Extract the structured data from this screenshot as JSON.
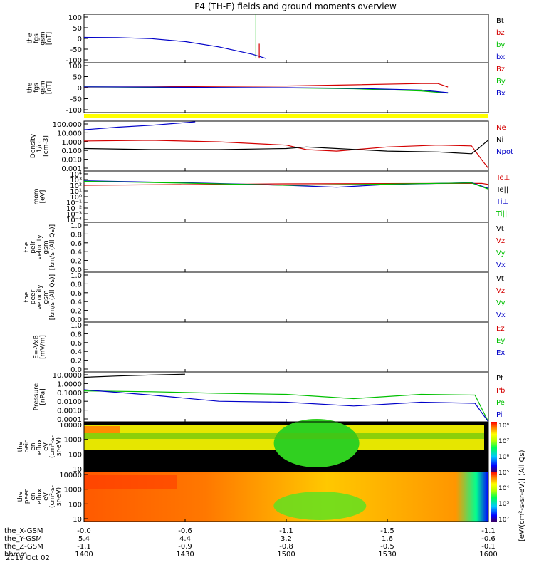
{
  "title": "P4 (TH-E) fields and ground moments overview",
  "date_label": "2019 Oct 02",
  "ephemeris": {
    "rows": [
      {
        "label": "the_X-GSM",
        "values": [
          "-0.0",
          "-0.6",
          "-1.1",
          "-1.5",
          "-1.1"
        ]
      },
      {
        "label": "the_Y-GSM",
        "values": [
          "5.4",
          "4.4",
          "3.2",
          "1.6",
          "-0.6"
        ]
      },
      {
        "label": "the_Z-GSM",
        "values": [
          "-1.1",
          "-0.9",
          "-0.8",
          "-0.5",
          "-0.1"
        ]
      },
      {
        "label": "hhmm",
        "values": [
          "1400",
          "1430",
          "1500",
          "1530",
          "1600"
        ]
      }
    ]
  },
  "colors": {
    "black": "#000000",
    "red": "#d40000",
    "green": "#00c000",
    "blue": "#0000c8",
    "yellow": "#ffff00"
  },
  "panels": [
    {
      "ylabel": [
        "the",
        "fgs",
        "gsm",
        "[nT]"
      ],
      "ticks": [
        "100",
        "50",
        "0",
        "-50",
        "-100"
      ],
      "legend": [
        {
          "text": "Bt",
          "color": "#000000"
        },
        {
          "text": "bz",
          "color": "#d40000"
        },
        {
          "text": "by",
          "color": "#00c000"
        },
        {
          "text": "bx",
          "color": "#0000c8"
        }
      ]
    },
    {
      "ylabel": [
        "the",
        "fgs",
        "gsm",
        "[nT]"
      ],
      "ticks": [
        "100",
        "50",
        "0",
        "-50",
        "-100"
      ],
      "legend": [
        {
          "text": "Bz",
          "color": "#d40000"
        },
        {
          "text": "By",
          "color": "#00c000"
        },
        {
          "text": "Bx",
          "color": "#0000c8"
        }
      ]
    },
    {
      "ylabel": [
        "Density",
        "1/cc",
        "[cm-3]"
      ],
      "ticks": [
        "100.000",
        "10.000",
        "1.000",
        "0.100",
        "0.010",
        "0.001"
      ],
      "legend": [
        {
          "text": "Ne",
          "color": "#d40000"
        },
        {
          "text": "Ni",
          "color": "#000000"
        },
        {
          "text": "Npot",
          "color": "#0000c8"
        }
      ]
    },
    {
      "ylabel": [
        "mom",
        "[eV]"
      ],
      "ticks": [
        "10⁴",
        "10³",
        "10²",
        "10¹",
        "10⁰",
        "10⁻¹",
        "10⁻²",
        "10⁻³",
        "10⁻⁴"
      ],
      "legend": [
        {
          "text": "Te⊥",
          "color": "#d40000"
        },
        {
          "text": "Te||",
          "color": "#000000"
        },
        {
          "text": "Ti⊥",
          "color": "#0000c8"
        },
        {
          "text": "Ti||",
          "color": "#00c000"
        }
      ]
    },
    {
      "ylabel": [
        "the",
        "peir",
        "velocity",
        "gsm",
        "[km/s (All Qs)]"
      ],
      "ticks": [
        "1.0",
        "0.8",
        "0.6",
        "0.4",
        "0.2",
        "0.0"
      ],
      "legend": [
        {
          "text": "Vt",
          "color": "#000000"
        },
        {
          "text": "Vz",
          "color": "#d40000"
        },
        {
          "text": "Vy",
          "color": "#00c000"
        },
        {
          "text": "Vx",
          "color": "#0000c8"
        }
      ]
    },
    {
      "ylabel": [
        "the",
        "peer",
        "velocity",
        "gsm",
        "[km/s (All Qs)]"
      ],
      "ticks": [
        "1.0",
        "0.8",
        "0.6",
        "0.4",
        "0.2",
        "0.0"
      ],
      "legend": [
        {
          "text": "Vt",
          "color": "#000000"
        },
        {
          "text": "Vz",
          "color": "#d40000"
        },
        {
          "text": "Vy",
          "color": "#00c000"
        },
        {
          "text": "Vx",
          "color": "#0000c8"
        }
      ]
    },
    {
      "ylabel": [
        "E=-VxB",
        "[mV/m]"
      ],
      "ticks": [
        "1.0",
        "0.8",
        "0.6",
        "0.4",
        "0.2",
        "0.0"
      ],
      "legend": [
        {
          "text": "Ez",
          "color": "#d40000"
        },
        {
          "text": "Ey",
          "color": "#00c000"
        },
        {
          "text": "Ex",
          "color": "#0000c8"
        }
      ]
    },
    {
      "ylabel": [
        "Pressure",
        "[nPa]"
      ],
      "ticks": [
        "10.0000",
        "1.0000",
        "0.1000",
        "0.0100",
        "0.0010",
        "0.0001"
      ],
      "legend": [
        {
          "text": "Pt",
          "color": "#000000"
        },
        {
          "text": "Pb",
          "color": "#d40000"
        },
        {
          "text": "Pe",
          "color": "#00c000"
        },
        {
          "text": "Pi",
          "color": "#0000c8"
        }
      ]
    },
    {
      "ylabel": [
        "the",
        "peir",
        "en",
        "eflux",
        "eV",
        "(cm²-s-",
        "sr-eV)"
      ],
      "ticks": [
        "10000",
        "1000",
        "100",
        "10"
      ],
      "legend": []
    },
    {
      "ylabel": [
        "the",
        "peer",
        "en",
        "eflux",
        "eV",
        "(cm²-s-",
        "sr-eV)"
      ],
      "ticks": [
        "10000",
        "1000",
        "100",
        "10"
      ],
      "legend": []
    }
  ],
  "colorbar": {
    "ticks": [
      "10⁸",
      "10⁷",
      "10⁶",
      "10⁵",
      "10⁴",
      "10³",
      "10²"
    ],
    "label": "[eV/(cm²-s-sr-eV)] (All Qs)"
  },
  "chart_data": [
    {
      "type": "line",
      "title": "P4 (TH-E) fields and ground moments overview",
      "ylim": [
        -120,
        110
      ],
      "x": [
        "1400",
        "1430",
        "1500",
        "1530",
        "1600"
      ],
      "series": [
        {
          "name": "bx",
          "color": "#0000c8",
          "x": [
            1400,
            1410,
            1420,
            1430,
            1440,
            1450,
            1454
          ],
          "values": [
            0,
            -1,
            -6,
            -20,
            -45,
            -80,
            -100
          ]
        },
        {
          "name": "by",
          "color": "#00c000",
          "x": [
            1451,
            1451,
            1451
          ],
          "values": [
            -100,
            110,
            -100
          ]
        },
        {
          "name": "bz",
          "color": "#d40000",
          "x": [
            1452,
            1452
          ],
          "values": [
            -100,
            -30
          ]
        }
      ]
    },
    {
      "type": "line",
      "ylim": [
        -120,
        110
      ],
      "series": [
        {
          "name": "Bz",
          "color": "#d40000",
          "x": [
            1400,
            1420,
            1440,
            1500,
            1520,
            1540,
            1545,
            1548
          ],
          "values": [
            -2,
            -1,
            1,
            3,
            8,
            14,
            14,
            -2
          ]
        },
        {
          "name": "By",
          "color": "#00c000",
          "x": [
            1400,
            1420,
            1440,
            1500,
            1520,
            1540,
            1548
          ],
          "values": [
            -1,
            -3,
            -5,
            -6,
            -10,
            -20,
            -30
          ]
        },
        {
          "name": "Bx",
          "color": "#0000c8",
          "x": [
            1400,
            1420,
            1440,
            1500,
            1520,
            1540,
            1548
          ],
          "values": [
            -1,
            -2,
            -4,
            -5,
            -8,
            -16,
            -28
          ]
        }
      ]
    },
    {
      "type": "line",
      "ylim": [
        0.0005,
        300
      ],
      "series": [
        {
          "name": "Ne",
          "color": "#d40000",
          "x": [
            1400,
            1420,
            1440,
            1500,
            1506,
            1515,
            1530,
            1545,
            1555,
            1558,
            1600
          ],
          "values": [
            1.5,
            1.8,
            1.2,
            0.5,
            0.15,
            0.1,
            0.3,
            0.5,
            0.4,
            0.01,
            0.001
          ]
        },
        {
          "name": "Ni",
          "color": "#000000",
          "x": [
            1400,
            1420,
            1440,
            1500,
            1506,
            1515,
            1530,
            1545,
            1555,
            1557,
            1600
          ],
          "values": [
            0.2,
            0.15,
            0.15,
            0.2,
            0.3,
            0.2,
            0.1,
            0.08,
            0.05,
            0.2,
            2.0
          ]
        },
        {
          "name": "Npot",
          "color": "#0000c8",
          "x": [
            1400,
            1410,
            1420,
            1430,
            1433
          ],
          "values": [
            30,
            60,
            100,
            200,
            250
          ]
        }
      ]
    },
    {
      "type": "line",
      "ylim": [
        0.0001,
        10000
      ],
      "series": [
        {
          "name": "Te⊥",
          "color": "#d40000",
          "x": [
            1400,
            1500,
            1530,
            1558,
            1600
          ],
          "values": [
            60,
            100,
            110,
            120,
            80
          ]
        },
        {
          "name": "Ti⊥",
          "color": "#0000c8",
          "x": [
            1400,
            1430,
            1500,
            1515,
            1530,
            1555,
            1600
          ],
          "values": [
            300,
            150,
            60,
            30,
            80,
            150,
            20
          ]
        },
        {
          "name": "Ti||",
          "color": "#00c000",
          "x": [
            1400,
            1430,
            1500,
            1530,
            1555,
            1600
          ],
          "values": [
            250,
            130,
            60,
            90,
            140,
            15
          ]
        }
      ]
    },
    {
      "type": "line",
      "ylim": [
        0,
        1
      ],
      "series": []
    },
    {
      "type": "line",
      "ylim": [
        0,
        1
      ],
      "series": []
    },
    {
      "type": "line",
      "ylim": [
        0,
        1
      ],
      "series": []
    },
    {
      "type": "line",
      "ylim": [
        5e-05,
        20
      ],
      "series": [
        {
          "name": "Pt",
          "color": "#000000",
          "x": [
            1400,
            1410,
            1420,
            1430
          ],
          "values": [
            5,
            7,
            9,
            11
          ]
        },
        {
          "name": "Pe",
          "color": "#00c000",
          "x": [
            1400,
            1420,
            1440,
            1500,
            1520,
            1540,
            1556,
            1600
          ],
          "values": [
            0.15,
            0.12,
            0.08,
            0.06,
            0.02,
            0.06,
            0.05,
            5e-05
          ]
        },
        {
          "name": "Pi",
          "color": "#0000c8",
          "x": [
            1400,
            1420,
            1440,
            1500,
            1520,
            1540,
            1556,
            1600
          ],
          "values": [
            0.2,
            0.05,
            0.01,
            0.008,
            0.003,
            0.008,
            0.006,
            5e-05
          ]
        }
      ]
    },
    {
      "type": "heatmap",
      "ylim": [
        10,
        20000
      ],
      "description_levels": "ion energy flux spectrogram"
    },
    {
      "type": "heatmap",
      "ylim": [
        10,
        20000
      ],
      "description_levels": "electron energy flux spectrogram"
    }
  ]
}
